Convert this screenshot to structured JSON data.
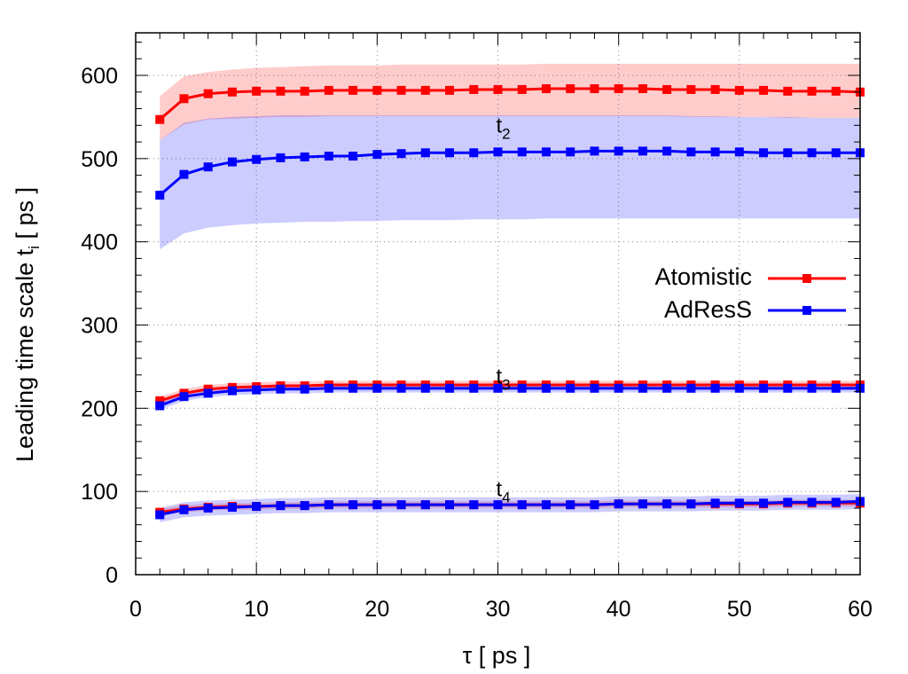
{
  "chart_data": {
    "type": "line",
    "title": "",
    "xlabel": "τ [ ps ]",
    "ylabel": "Leading time scale t_i [ ps ]",
    "xlim": [
      0,
      60
    ],
    "ylim": [
      0,
      650
    ],
    "x_ticks": [
      0,
      10,
      20,
      30,
      40,
      50,
      60
    ],
    "y_ticks": [
      0,
      100,
      200,
      300,
      400,
      500,
      600
    ],
    "x_minor_step": 2,
    "y_minor_step": 20,
    "grid": true,
    "legend_position": "right, mid-upper",
    "x": [
      2,
      4,
      6,
      8,
      10,
      12,
      14,
      16,
      18,
      20,
      22,
      24,
      26,
      28,
      30,
      32,
      34,
      36,
      38,
      40,
      42,
      44,
      46,
      48,
      50,
      52,
      54,
      56,
      58,
      60
    ],
    "groups": [
      {
        "label": "t2",
        "series": [
          {
            "name": "Atomistic",
            "color": "#ff0000",
            "values": [
              547,
              572,
              578,
              580,
              581,
              581,
              581,
              582,
              582,
              582,
              582,
              582,
              582,
              583,
              583,
              583,
              584,
              584,
              584,
              584,
              584,
              583,
              583,
              583,
              582,
              582,
              581,
              581,
              581,
              580
            ],
            "band_upper": [
              575,
              599,
              604,
              607,
              609,
              610,
              611,
              612,
              612,
              612,
              613,
              613,
              613,
              613,
              613,
              613,
              614,
              614,
              614,
              614,
              614,
              614,
              614,
              614,
              614,
              614,
              614,
              614,
              614,
              614
            ],
            "band_lower": [
              522,
              541,
              547,
              548,
              549,
              550,
              550,
              551,
              551,
              551,
              551,
              551,
              551,
              551,
              551,
              551,
              551,
              551,
              551,
              551,
              551,
              551,
              550,
              550,
              550,
              550,
              549,
              549,
              549,
              549
            ]
          },
          {
            "name": "AdResS",
            "color": "#0000ff",
            "values": [
              456,
              481,
              490,
              496,
              499,
              501,
              502,
              503,
              503,
              505,
              506,
              507,
              507,
              507,
              508,
              508,
              508,
              508,
              509,
              509,
              509,
              509,
              508,
              508,
              508,
              507,
              507,
              507,
              507,
              507
            ],
            "band_upper": [
              522,
              543,
              548,
              550,
              551,
              552,
              552,
              552,
              552,
              552,
              552,
              552,
              552,
              552,
              552,
              552,
              552,
              552,
              552,
              552,
              552,
              552,
              551,
              551,
              550,
              550,
              550,
              549,
              549,
              549
            ],
            "band_lower": [
              391,
              410,
              417,
              420,
              422,
              423,
              424,
              424,
              425,
              425,
              426,
              426,
              426,
              427,
              427,
              427,
              428,
              428,
              428,
              428,
              428,
              428,
              428,
              428,
              428,
              428,
              428,
              428,
              428,
              428
            ]
          }
        ],
        "label_position": [
          30,
          540
        ]
      },
      {
        "label": "t3",
        "series": [
          {
            "name": "Atomistic",
            "color": "#ff0000",
            "values": [
              209,
              218,
              223,
              225,
              226,
              227,
              227,
              228,
              228,
              228,
              228,
              228,
              228,
              228,
              228,
              228,
              228,
              228,
              228,
              228,
              228,
              228,
              228,
              228,
              228,
              228,
              228,
              228,
              228,
              228
            ],
            "band_upper": [
              214,
              223,
              228,
              230,
              231,
              232,
              232,
              233,
              233,
              233,
              233,
              233,
              233,
              233,
              233,
              233,
              233,
              233,
              233,
              233,
              233,
              233,
              233,
              233,
              233,
              233,
              233,
              233,
              233,
              233
            ],
            "band_lower": [
              204,
              213,
              218,
              220,
              221,
              222,
              222,
              223,
              223,
              223,
              223,
              223,
              223,
              223,
              223,
              223,
              223,
              223,
              223,
              223,
              223,
              223,
              223,
              223,
              223,
              223,
              223,
              223,
              223,
              223
            ]
          },
          {
            "name": "AdResS",
            "color": "#0000ff",
            "values": [
              203,
              214,
              218,
              221,
              222,
              223,
              223,
              224,
              224,
              224,
              224,
              224,
              224,
              224,
              224,
              224,
              224,
              224,
              224,
              224,
              224,
              224,
              224,
              224,
              224,
              224,
              224,
              224,
              224,
              224
            ],
            "band_upper": [
              208,
              219,
              223,
              226,
              227,
              228,
              228,
              229,
              229,
              229,
              229,
              229,
              229,
              229,
              229,
              229,
              229,
              229,
              229,
              229,
              229,
              229,
              229,
              229,
              229,
              229,
              229,
              229,
              229,
              229
            ],
            "band_lower": [
              198,
              209,
              213,
              216,
              217,
              218,
              218,
              219,
              219,
              219,
              219,
              219,
              219,
              219,
              219,
              219,
              219,
              219,
              219,
              219,
              219,
              219,
              219,
              219,
              219,
              219,
              219,
              219,
              219,
              219
            ]
          }
        ],
        "label_position": [
          30,
          238
        ]
      },
      {
        "label": "t4",
        "series": [
          {
            "name": "Atomistic",
            "color": "#ff0000",
            "values": [
              75,
              79,
              81,
              82,
              82,
              83,
              83,
              84,
              84,
              84,
              84,
              84,
              84,
              84,
              84,
              84,
              84,
              84,
              84,
              85,
              85,
              85,
              85,
              85,
              85,
              85,
              86,
              86,
              86,
              86
            ],
            "band_upper": [
              79,
              83,
              85,
              86,
              86,
              87,
              87,
              88,
              88,
              88,
              88,
              88,
              88,
              88,
              88,
              88,
              88,
              88,
              88,
              89,
              89,
              89,
              89,
              89,
              89,
              89,
              90,
              90,
              90,
              90
            ],
            "band_lower": [
              71,
              75,
              77,
              78,
              78,
              79,
              79,
              80,
              80,
              80,
              80,
              80,
              80,
              80,
              80,
              80,
              80,
              80,
              80,
              81,
              81,
              81,
              81,
              81,
              81,
              81,
              82,
              82,
              82,
              82
            ]
          },
          {
            "name": "AdResS",
            "color": "#0000ff",
            "values": [
              72,
              78,
              80,
              81,
              82,
              83,
              83,
              84,
              84,
              84,
              84,
              84,
              84,
              84,
              84,
              84,
              84,
              84,
              84,
              85,
              85,
              85,
              85,
              86,
              86,
              86,
              87,
              87,
              87,
              88
            ],
            "band_upper": [
              80,
              87,
              89,
              90,
              91,
              92,
              92,
              93,
              93,
              93,
              93,
              93,
              93,
              93,
              93,
              93,
              93,
              93,
              93,
              94,
              94,
              94,
              94,
              95,
              95,
              95,
              96,
              96,
              96,
              97
            ],
            "band_lower": [
              63,
              69,
              71,
              72,
              73,
              74,
              74,
              75,
              75,
              75,
              75,
              75,
              75,
              75,
              75,
              75,
              75,
              75,
              75,
              76,
              76,
              76,
              76,
              77,
              77,
              77,
              78,
              78,
              78,
              79
            ]
          }
        ],
        "label_position": [
          30,
          103
        ]
      }
    ],
    "legend": [
      {
        "name": "Atomistic",
        "color": "#ff0000"
      },
      {
        "name": "AdResS",
        "color": "#0000ff"
      }
    ],
    "band_colors": {
      "Atomistic": "rgba(255,0,0,0.2)",
      "AdResS": "rgba(0,0,255,0.2)"
    }
  },
  "labels": {
    "xlabel_main": "τ [ ps ]",
    "ylabel_main": "Leading time scale  t",
    "ylabel_sub": "i",
    "ylabel_tail": "  [ ps ]",
    "legend_atomistic": "Atomistic",
    "legend_adress": "AdResS"
  }
}
